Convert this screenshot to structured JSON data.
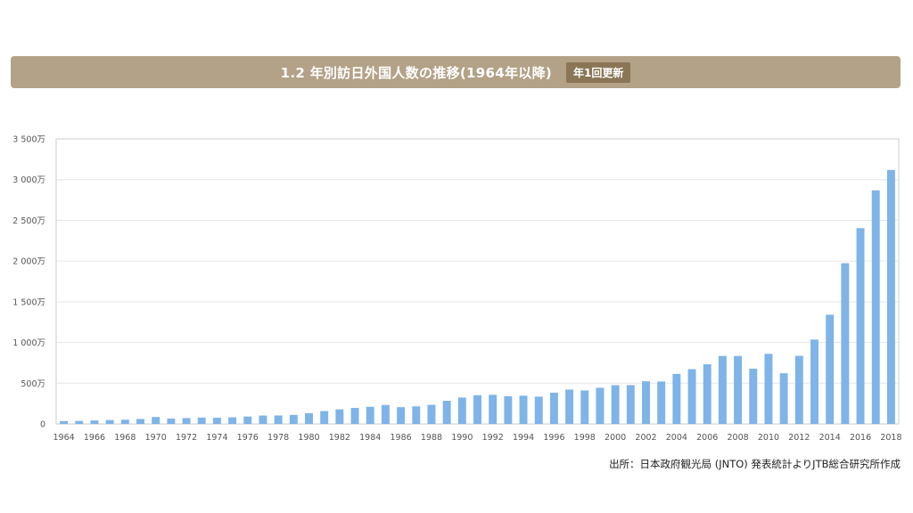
{
  "header": {
    "title": "1.2 年別訪日外国人数の推移(1964年以降)",
    "badge": "年1回更新"
  },
  "source": "出所：日本政府観光局 (JNTO) 発表統計よりJTB総合研究所作成",
  "colors": {
    "banner": "#b3a287",
    "badge": "#8a7656",
    "bar": "#7eb4e8",
    "grid": "#e6e6e6"
  },
  "chart_data": {
    "type": "bar",
    "title": "",
    "xlabel": "",
    "ylabel": "",
    "ylim": [
      0,
      35000000
    ],
    "y_ticks": [
      0,
      5000000,
      10000000,
      15000000,
      20000000,
      25000000,
      30000000,
      35000000
    ],
    "y_tick_labels": [
      "0",
      "500万",
      "1 000万",
      "1 500万",
      "2 000万",
      "2 500万",
      "3 000万",
      "3 500万"
    ],
    "x_tick_labels": [
      "1964",
      "1966",
      "1968",
      "1970",
      "1972",
      "1974",
      "1976",
      "1978",
      "1980",
      "1982",
      "1984",
      "1986",
      "1988",
      "1990",
      "1992",
      "1994",
      "1996",
      "1998",
      "2000",
      "2002",
      "2004",
      "2006",
      "2008",
      "2010",
      "2012",
      "2014",
      "2016",
      "2018"
    ],
    "categories": [
      1964,
      1965,
      1966,
      1967,
      1968,
      1969,
      1970,
      1971,
      1972,
      1973,
      1974,
      1975,
      1976,
      1977,
      1978,
      1979,
      1980,
      1981,
      1982,
      1983,
      1984,
      1985,
      1986,
      1987,
      1988,
      1989,
      1990,
      1991,
      1992,
      1993,
      1994,
      1995,
      1996,
      1997,
      1998,
      1999,
      2000,
      2001,
      2002,
      2003,
      2004,
      2005,
      2006,
      2007,
      2008,
      2009,
      2010,
      2011,
      2012,
      2013,
      2014,
      2015,
      2016,
      2017,
      2018
    ],
    "values": [
      350000,
      370000,
      430000,
      480000,
      520000,
      610000,
      850000,
      660000,
      720000,
      780000,
      760000,
      810000,
      910000,
      1030000,
      1040000,
      1110000,
      1320000,
      1580000,
      1790000,
      1970000,
      2110000,
      2330000,
      2060000,
      2160000,
      2350000,
      2840000,
      3240000,
      3530000,
      3580000,
      3410000,
      3470000,
      3350000,
      3840000,
      4220000,
      4110000,
      4440000,
      4760000,
      4770000,
      5240000,
      5210000,
      6140000,
      6730000,
      7330000,
      8350000,
      8350000,
      6790000,
      8610000,
      6220000,
      8360000,
      10360000,
      13410000,
      19740000,
      24040000,
      28690000,
      31190000
    ],
    "grid": true,
    "legend": "none"
  }
}
